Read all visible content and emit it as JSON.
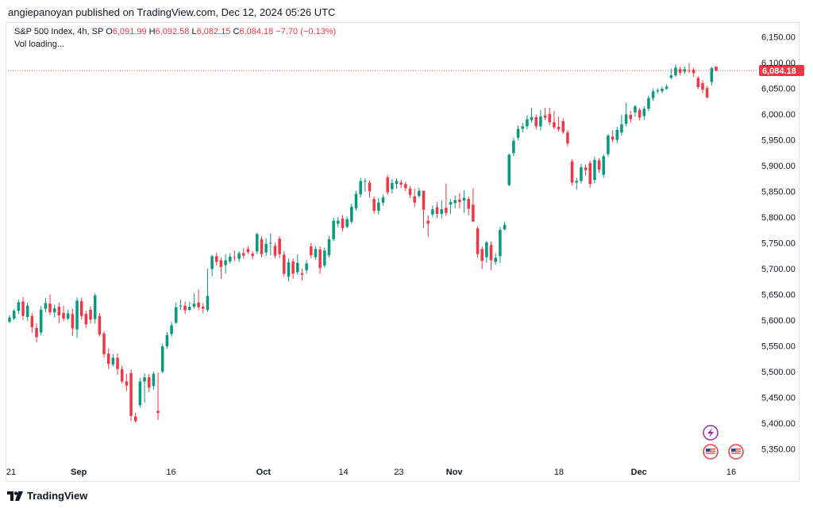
{
  "publisher_line": "angiepanoyan published on TradingView.com, Dec 12, 2024 05:26 UTC",
  "legend": {
    "symbol": "S&P 500 Index, 4h, SP",
    "o_label": "O",
    "o_value": "6,091.99",
    "h_label": "H",
    "h_value": "6,092.58",
    "l_label": "L",
    "l_value": "6,082.15",
    "c_label": "C",
    "c_value": "6,084.18",
    "change": "−7.70 (−0.13%)"
  },
  "vol_text": "Vol loading...",
  "footer_brand": "TradingView",
  "icons": [
    "tradingview-logo-icon",
    "lightning-icon",
    "us-flag-icon"
  ],
  "colors": {
    "up": "#089981",
    "down": "#f23645",
    "price_badge": "#f23645",
    "lightning": "#9c27b0"
  },
  "chart_data": {
    "type": "candlestick",
    "title": "S&P 500 Index, 4h, SP",
    "ylim": [
      5320,
      6175
    ],
    "y_ticks": [
      "6,150.00",
      "6,100.00",
      "6,050.00",
      "6,000.00",
      "5,950.00",
      "5,900.00",
      "5,850.00",
      "5,800.00",
      "5,750.00",
      "5,700.00",
      "5,650.00",
      "5,600.00",
      "5,550.00",
      "5,500.00",
      "5,450.00",
      "5,400.00",
      "5,350.00"
    ],
    "y_tick_values": [
      6150,
      6100,
      6050,
      6000,
      5950,
      5900,
      5850,
      5800,
      5750,
      5700,
      5650,
      5600,
      5550,
      5500,
      5450,
      5400,
      5350
    ],
    "x_ticks": [
      "21",
      "Sep",
      "16",
      "Oct",
      "14",
      "23",
      "Nov",
      "18",
      "Dec",
      "16"
    ],
    "x_tick_dates": [
      "2024-08-21",
      "2024-09-01",
      "2024-09-16",
      "2024-10-01",
      "2024-10-14",
      "2024-10-23",
      "2024-11-01",
      "2024-11-18",
      "2024-12-01",
      "2024-12-16"
    ],
    "last_price": 6084.18,
    "last_price_label": "6,084.18",
    "grid": false,
    "candles": [
      {
        "o": 5597,
        "c": 5605,
        "h": 5610,
        "l": 5594
      },
      {
        "o": 5603,
        "c": 5618,
        "h": 5622,
        "l": 5600
      },
      {
        "o": 5618,
        "c": 5635,
        "h": 5640,
        "l": 5612
      },
      {
        "o": 5636,
        "c": 5608,
        "h": 5645,
        "l": 5600
      },
      {
        "o": 5606,
        "c": 5628,
        "h": 5634,
        "l": 5598
      },
      {
        "o": 5608,
        "c": 5586,
        "h": 5614,
        "l": 5575
      },
      {
        "o": 5585,
        "c": 5567,
        "h": 5594,
        "l": 5557
      },
      {
        "o": 5576,
        "c": 5620,
        "h": 5627,
        "l": 5570
      },
      {
        "o": 5622,
        "c": 5633,
        "h": 5643,
        "l": 5615
      },
      {
        "o": 5632,
        "c": 5615,
        "h": 5650,
        "l": 5610
      },
      {
        "o": 5615,
        "c": 5623,
        "h": 5630,
        "l": 5605
      },
      {
        "o": 5626,
        "c": 5609,
        "h": 5634,
        "l": 5594
      },
      {
        "o": 5614,
        "c": 5603,
        "h": 5628,
        "l": 5598
      },
      {
        "o": 5603,
        "c": 5613,
        "h": 5620,
        "l": 5600
      },
      {
        "o": 5612,
        "c": 5584,
        "h": 5622,
        "l": 5570
      },
      {
        "o": 5582,
        "c": 5638,
        "h": 5644,
        "l": 5565
      },
      {
        "o": 5637,
        "c": 5608,
        "h": 5644,
        "l": 5601
      },
      {
        "o": 5612,
        "c": 5592,
        "h": 5618,
        "l": 5585
      },
      {
        "o": 5620,
        "c": 5601,
        "h": 5627,
        "l": 5593
      },
      {
        "o": 5602,
        "c": 5648,
        "h": 5652,
        "l": 5593
      },
      {
        "o": 5608,
        "c": 5572,
        "h": 5614,
        "l": 5568
      },
      {
        "o": 5574,
        "c": 5534,
        "h": 5578,
        "l": 5527
      },
      {
        "o": 5535,
        "c": 5515,
        "h": 5545,
        "l": 5505
      },
      {
        "o": 5514,
        "c": 5527,
        "h": 5534,
        "l": 5510
      },
      {
        "o": 5527,
        "c": 5505,
        "h": 5535,
        "l": 5494
      },
      {
        "o": 5505,
        "c": 5481,
        "h": 5512,
        "l": 5477
      },
      {
        "o": 5481,
        "c": 5473,
        "h": 5496,
        "l": 5462
      },
      {
        "o": 5497,
        "c": 5414,
        "h": 5504,
        "l": 5404
      },
      {
        "o": 5413,
        "c": 5404,
        "h": 5420,
        "l": 5401
      },
      {
        "o": 5435,
        "c": 5481,
        "h": 5488,
        "l": 5430
      },
      {
        "o": 5481,
        "c": 5489,
        "h": 5497,
        "l": 5440
      },
      {
        "o": 5489,
        "c": 5469,
        "h": 5496,
        "l": 5460
      },
      {
        "o": 5472,
        "c": 5496,
        "h": 5500,
        "l": 5465
      },
      {
        "o": 5424,
        "c": 5420,
        "h": 5498,
        "l": 5406
      },
      {
        "o": 5500,
        "c": 5549,
        "h": 5554,
        "l": 5497
      },
      {
        "o": 5549,
        "c": 5571,
        "h": 5577,
        "l": 5544
      },
      {
        "o": 5573,
        "c": 5590,
        "h": 5596,
        "l": 5568
      },
      {
        "o": 5595,
        "c": 5625,
        "h": 5634,
        "l": 5593
      },
      {
        "o": 5627,
        "c": 5628,
        "h": 5640,
        "l": 5620
      },
      {
        "o": 5628,
        "c": 5619,
        "h": 5636,
        "l": 5612
      },
      {
        "o": 5620,
        "c": 5626,
        "h": 5636,
        "l": 5618
      },
      {
        "o": 5626,
        "c": 5632,
        "h": 5652,
        "l": 5622
      },
      {
        "o": 5634,
        "c": 5625,
        "h": 5660,
        "l": 5619
      },
      {
        "o": 5626,
        "c": 5622,
        "h": 5633,
        "l": 5613
      },
      {
        "o": 5620,
        "c": 5647,
        "h": 5700,
        "l": 5616
      },
      {
        "o": 5699,
        "c": 5724,
        "h": 5726,
        "l": 5685
      },
      {
        "o": 5724,
        "c": 5713,
        "h": 5731,
        "l": 5706
      },
      {
        "o": 5716,
        "c": 5703,
        "h": 5722,
        "l": 5680
      },
      {
        "o": 5707,
        "c": 5716,
        "h": 5728,
        "l": 5690
      },
      {
        "o": 5714,
        "c": 5723,
        "h": 5730,
        "l": 5710
      },
      {
        "o": 5722,
        "c": 5721,
        "h": 5735,
        "l": 5715
      },
      {
        "o": 5719,
        "c": 5730,
        "h": 5734,
        "l": 5713
      },
      {
        "o": 5730,
        "c": 5725,
        "h": 5740,
        "l": 5719
      },
      {
        "o": 5738,
        "c": 5732,
        "h": 5744,
        "l": 5728
      },
      {
        "o": 5729,
        "c": 5724,
        "h": 5734,
        "l": 5718
      },
      {
        "o": 5733,
        "c": 5767,
        "h": 5770,
        "l": 5728
      },
      {
        "o": 5757,
        "c": 5728,
        "h": 5763,
        "l": 5722
      },
      {
        "o": 5731,
        "c": 5748,
        "h": 5759,
        "l": 5724
      },
      {
        "o": 5750,
        "c": 5750,
        "h": 5768,
        "l": 5726
      },
      {
        "o": 5744,
        "c": 5725,
        "h": 5750,
        "l": 5720
      },
      {
        "o": 5758,
        "c": 5728,
        "h": 5763,
        "l": 5720
      },
      {
        "o": 5727,
        "c": 5690,
        "h": 5734,
        "l": 5684
      },
      {
        "o": 5684,
        "c": 5712,
        "h": 5719,
        "l": 5675
      },
      {
        "o": 5714,
        "c": 5690,
        "h": 5720,
        "l": 5680
      },
      {
        "o": 5693,
        "c": 5711,
        "h": 5728,
        "l": 5688
      },
      {
        "o": 5691,
        "c": 5688,
        "h": 5700,
        "l": 5677
      },
      {
        "o": 5697,
        "c": 5710,
        "h": 5716,
        "l": 5690
      },
      {
        "o": 5743,
        "c": 5726,
        "h": 5750,
        "l": 5720
      },
      {
        "o": 5722,
        "c": 5738,
        "h": 5743,
        "l": 5717
      },
      {
        "o": 5737,
        "c": 5701,
        "h": 5743,
        "l": 5690
      },
      {
        "o": 5706,
        "c": 5735,
        "h": 5741,
        "l": 5701
      },
      {
        "o": 5726,
        "c": 5757,
        "h": 5764,
        "l": 5722
      },
      {
        "o": 5757,
        "c": 5793,
        "h": 5799,
        "l": 5753
      },
      {
        "o": 5787,
        "c": 5793,
        "h": 5800,
        "l": 5780
      },
      {
        "o": 5797,
        "c": 5778,
        "h": 5804,
        "l": 5772
      },
      {
        "o": 5781,
        "c": 5796,
        "h": 5801,
        "l": 5778
      },
      {
        "o": 5791,
        "c": 5820,
        "h": 5826,
        "l": 5787
      },
      {
        "o": 5817,
        "c": 5845,
        "h": 5851,
        "l": 5812
      },
      {
        "o": 5844,
        "c": 5870,
        "h": 5876,
        "l": 5838
      },
      {
        "o": 5869,
        "c": 5870,
        "h": 5875,
        "l": 5849
      },
      {
        "o": 5867,
        "c": 5850,
        "h": 5871,
        "l": 5838
      },
      {
        "o": 5835,
        "c": 5812,
        "h": 5840,
        "l": 5806
      },
      {
        "o": 5812,
        "c": 5828,
        "h": 5837,
        "l": 5805
      },
      {
        "o": 5828,
        "c": 5838,
        "h": 5843,
        "l": 5822
      },
      {
        "o": 5877,
        "c": 5848,
        "h": 5882,
        "l": 5843
      },
      {
        "o": 5854,
        "c": 5866,
        "h": 5874,
        "l": 5846
      },
      {
        "o": 5864,
        "c": 5870,
        "h": 5875,
        "l": 5855
      },
      {
        "o": 5867,
        "c": 5863,
        "h": 5872,
        "l": 5856
      },
      {
        "o": 5864,
        "c": 5856,
        "h": 5869,
        "l": 5850
      },
      {
        "o": 5855,
        "c": 5843,
        "h": 5860,
        "l": 5837
      },
      {
        "o": 5840,
        "c": 5828,
        "h": 5855,
        "l": 5819
      },
      {
        "o": 5841,
        "c": 5851,
        "h": 5857,
        "l": 5837
      },
      {
        "o": 5851,
        "c": 5814,
        "h": 5848,
        "l": 5779
      },
      {
        "o": 5793,
        "c": 5787,
        "h": 5803,
        "l": 5761
      },
      {
        "o": 5805,
        "c": 5815,
        "h": 5822,
        "l": 5800
      },
      {
        "o": 5819,
        "c": 5806,
        "h": 5829,
        "l": 5798
      },
      {
        "o": 5806,
        "c": 5815,
        "h": 5832,
        "l": 5797
      },
      {
        "o": 5818,
        "c": 5808,
        "h": 5865,
        "l": 5802
      },
      {
        "o": 5824,
        "c": 5829,
        "h": 5835,
        "l": 5806
      },
      {
        "o": 5827,
        "c": 5833,
        "h": 5842,
        "l": 5817
      },
      {
        "o": 5834,
        "c": 5829,
        "h": 5847,
        "l": 5817
      },
      {
        "o": 5832,
        "c": 5837,
        "h": 5852,
        "l": 5808
      },
      {
        "o": 5835,
        "c": 5816,
        "h": 5840,
        "l": 5803
      },
      {
        "o": 5824,
        "c": 5791,
        "h": 5856,
        "l": 5798
      },
      {
        "o": 5778,
        "c": 5728,
        "h": 5782,
        "l": 5721
      },
      {
        "o": 5738,
        "c": 5715,
        "h": 5743,
        "l": 5699
      },
      {
        "o": 5722,
        "c": 5751,
        "h": 5754,
        "l": 5712
      },
      {
        "o": 5746,
        "c": 5716,
        "h": 5752,
        "l": 5697
      },
      {
        "o": 5713,
        "c": 5721,
        "h": 5730,
        "l": 5707
      },
      {
        "o": 5724,
        "c": 5775,
        "h": 5781,
        "l": 5711
      },
      {
        "o": 5776,
        "c": 5785,
        "h": 5791,
        "l": 5774
      },
      {
        "o": 5862,
        "c": 5921,
        "h": 5924,
        "l": 5860
      },
      {
        "o": 5924,
        "c": 5948,
        "h": 5954,
        "l": 5918
      },
      {
        "o": 5954,
        "c": 5971,
        "h": 5977,
        "l": 5949
      },
      {
        "o": 5971,
        "c": 5976,
        "h": 5983,
        "l": 5964
      },
      {
        "o": 5976,
        "c": 5990,
        "h": 5997,
        "l": 5970
      },
      {
        "o": 5988,
        "c": 5994,
        "h": 6012,
        "l": 5983
      },
      {
        "o": 5994,
        "c": 5976,
        "h": 5999,
        "l": 5970
      },
      {
        "o": 5976,
        "c": 5995,
        "h": 6008,
        "l": 5968
      },
      {
        "o": 5997,
        "c": 5993,
        "h": 6012,
        "l": 5988
      },
      {
        "o": 6000,
        "c": 5984,
        "h": 6012,
        "l": 5978
      },
      {
        "o": 5984,
        "c": 5974,
        "h": 6006,
        "l": 5970
      },
      {
        "o": 5975,
        "c": 5970,
        "h": 5995,
        "l": 5966
      },
      {
        "o": 5986,
        "c": 5965,
        "h": 5992,
        "l": 5961
      },
      {
        "o": 5964,
        "c": 5943,
        "h": 5969,
        "l": 5937
      },
      {
        "o": 5908,
        "c": 5867,
        "h": 5912,
        "l": 5861
      },
      {
        "o": 5867,
        "c": 5870,
        "h": 5876,
        "l": 5853
      },
      {
        "o": 5870,
        "c": 5897,
        "h": 5903,
        "l": 5865
      },
      {
        "o": 5896,
        "c": 5891,
        "h": 5902,
        "l": 5880
      },
      {
        "o": 5905,
        "c": 5864,
        "h": 5909,
        "l": 5857
      },
      {
        "o": 5872,
        "c": 5911,
        "h": 5917,
        "l": 5866
      },
      {
        "o": 5910,
        "c": 5892,
        "h": 5915,
        "l": 5886
      },
      {
        "o": 5882,
        "c": 5918,
        "h": 5922,
        "l": 5876
      },
      {
        "o": 5922,
        "c": 5958,
        "h": 5961,
        "l": 5917
      },
      {
        "o": 5956,
        "c": 5950,
        "h": 5968,
        "l": 5945
      },
      {
        "o": 5950,
        "c": 5969,
        "h": 5975,
        "l": 5943
      },
      {
        "o": 5964,
        "c": 5980,
        "h": 5998,
        "l": 5958
      },
      {
        "o": 5981,
        "c": 5999,
        "h": 6022,
        "l": 5976
      },
      {
        "o": 5998,
        "c": 5990,
        "h": 6006,
        "l": 5983
      },
      {
        "o": 6003,
        "c": 6015,
        "h": 6018,
        "l": 5995
      },
      {
        "o": 6008,
        "c": 5993,
        "h": 6012,
        "l": 5987
      },
      {
        "o": 5996,
        "c": 6010,
        "h": 6015,
        "l": 5988
      },
      {
        "o": 6010,
        "c": 6031,
        "h": 6036,
        "l": 6005
      },
      {
        "o": 6031,
        "c": 6044,
        "h": 6050,
        "l": 6026
      },
      {
        "o": 6044,
        "c": 6046,
        "h": 6050,
        "l": 6040
      },
      {
        "o": 6044,
        "c": 6049,
        "h": 6053,
        "l": 6040
      },
      {
        "o": 6049,
        "c": 6053,
        "h": 6057,
        "l": 6046
      },
      {
        "o": 6070,
        "c": 6075,
        "h": 6088,
        "l": 6068
      },
      {
        "o": 6075,
        "c": 6090,
        "h": 6096,
        "l": 6072
      },
      {
        "o": 6087,
        "c": 6080,
        "h": 6092,
        "l": 6075
      },
      {
        "o": 6082,
        "c": 6087,
        "h": 6092,
        "l": 6078
      },
      {
        "o": 6085,
        "c": 6084,
        "h": 6099,
        "l": 6079
      },
      {
        "o": 6086,
        "c": 6079,
        "h": 6090,
        "l": 6072
      },
      {
        "o": 6070,
        "c": 6052,
        "h": 6073,
        "l": 6048
      },
      {
        "o": 6060,
        "c": 6047,
        "h": 6066,
        "l": 6040
      },
      {
        "o": 6050,
        "c": 6032,
        "h": 6054,
        "l": 6030
      },
      {
        "o": 6062,
        "c": 6089,
        "h": 6092,
        "l": 6055
      },
      {
        "o": 6091.99,
        "c": 6084.18,
        "h": 6092.58,
        "l": 6082.15
      }
    ]
  }
}
